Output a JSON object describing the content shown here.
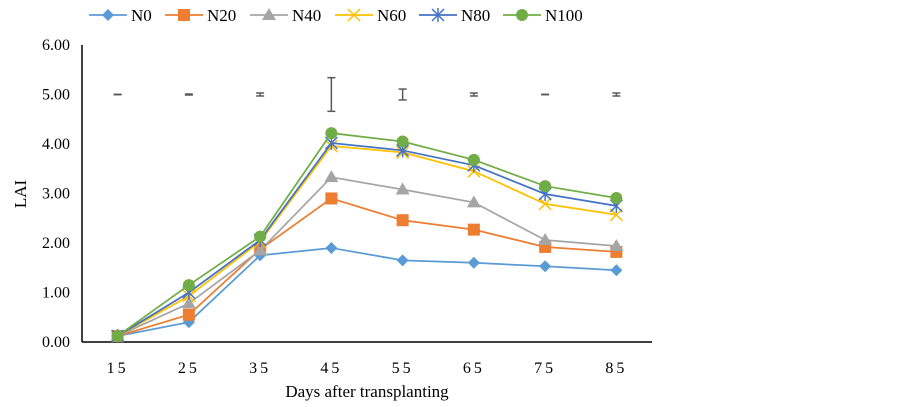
{
  "chart_data": {
    "type": "line",
    "title": "",
    "xlabel": "Days after transplanting",
    "ylabel": "LAI",
    "categories": [
      "15",
      "25",
      "35",
      "45",
      "55",
      "65",
      "75",
      "85"
    ],
    "ylim": [
      0,
      6
    ],
    "yticks": [
      "0.00",
      "1.00",
      "2.00",
      "3.00",
      "4.00",
      "5.00",
      "6.00"
    ],
    "grid": false,
    "legend_position": "top",
    "series": [
      {
        "name": "N0",
        "color": "#5B9BD5",
        "marker": "diamond",
        "values": [
          0.12,
          0.4,
          1.75,
          1.9,
          1.65,
          1.6,
          1.53,
          1.45
        ]
      },
      {
        "name": "N20",
        "color": "#ED7D31",
        "marker": "square",
        "values": [
          0.12,
          0.55,
          1.87,
          2.9,
          2.46,
          2.27,
          1.92,
          1.82
        ]
      },
      {
        "name": "N40",
        "color": "#A5A5A5",
        "marker": "triangle",
        "values": [
          0.12,
          0.78,
          1.85,
          3.33,
          3.08,
          2.82,
          2.06,
          1.94
        ]
      },
      {
        "name": "N60",
        "color": "#FFC000",
        "marker": "x",
        "values": [
          0.12,
          0.93,
          2.03,
          3.96,
          3.83,
          3.45,
          2.79,
          2.57
        ]
      },
      {
        "name": "N80",
        "color": "#4472C4",
        "marker": "star",
        "values": [
          0.12,
          1.0,
          2.06,
          4.02,
          3.87,
          3.57,
          2.99,
          2.75
        ]
      },
      {
        "name": "N100",
        "color": "#70AD47",
        "marker": "circle",
        "values": [
          0.12,
          1.15,
          2.13,
          4.22,
          4.05,
          3.68,
          3.15,
          2.91
        ]
      }
    ],
    "error_bars": {
      "center": 5.0,
      "half_widths": [
        0.0,
        0.01,
        0.03,
        0.34,
        0.11,
        0.03,
        0.0,
        0.03
      ],
      "color": "#595959"
    }
  }
}
